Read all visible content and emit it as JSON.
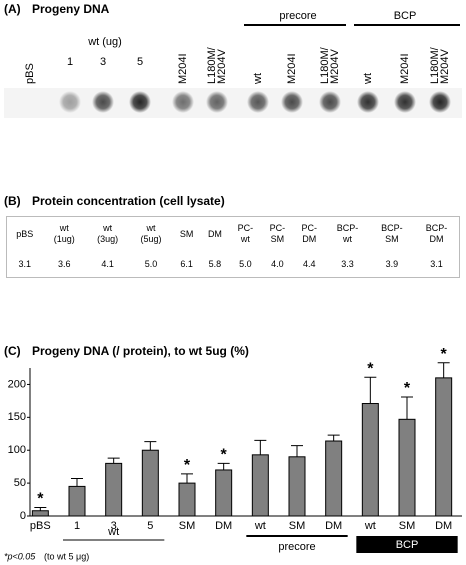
{
  "panel_a": {
    "letter": "(A)",
    "title": "Progeny DNA",
    "wt_group": "wt (ug)",
    "precore_group": "precore",
    "bcp_group": "BCP",
    "lanes": [
      [
        "pBS"
      ],
      [
        "1"
      ],
      [
        "3"
      ],
      [
        "5"
      ],
      [
        "M204I"
      ],
      [
        "L180M/",
        "M204V"
      ],
      [
        "wt"
      ],
      [
        "M204I"
      ],
      [
        "L180M/",
        "M204V"
      ],
      [
        "wt"
      ],
      [
        "M204I"
      ],
      [
        "L180M/",
        "M204V"
      ]
    ]
  },
  "panel_b": {
    "letter": "(B)",
    "title": "Protein concentration (cell lysate)",
    "headers": [
      "pBS",
      "wt\n(1ug)",
      "wt\n(3ug)",
      "wt\n(5ug)",
      "SM",
      "DM",
      "PC-\nwt",
      "PC-\nSM",
      "PC-\nDM",
      "BCP-\nwt",
      "BCP-\nSM",
      "BCP-\nDM"
    ],
    "cells": [
      "3.1",
      "3.6",
      "4.1",
      "5.0",
      "6.1",
      "5.8",
      "5.0",
      "4.0",
      "4.4",
      "3.3",
      "3.9",
      "3.1"
    ]
  },
  "chart_data": {
    "type": "bar",
    "letter": "(C)",
    "title": "Progeny DNA (/ protein), to wt 5ug (%)",
    "categories": [
      "pBS",
      "1",
      "3",
      "5",
      "SM",
      "DM",
      "wt",
      "SM",
      "DM",
      "wt",
      "SM",
      "DM"
    ],
    "values": [
      8,
      45,
      80,
      100,
      50,
      70,
      93,
      90,
      114,
      171,
      147,
      210
    ],
    "errors": [
      5,
      12,
      8,
      13,
      14,
      10,
      22,
      17,
      9,
      40,
      34,
      23
    ],
    "stars": [
      "*",
      null,
      null,
      null,
      "*",
      "*",
      null,
      null,
      null,
      "*",
      "*",
      "*"
    ],
    "groups": [
      "wt",
      "precore",
      "BCP"
    ],
    "color": "#808080",
    "ylim": [
      0,
      225
    ],
    "yticks": [
      0,
      50,
      100,
      150,
      200
    ],
    "footnote_marker": "*p<0.05",
    "footnote_text": "(to wt 5 μg)"
  }
}
